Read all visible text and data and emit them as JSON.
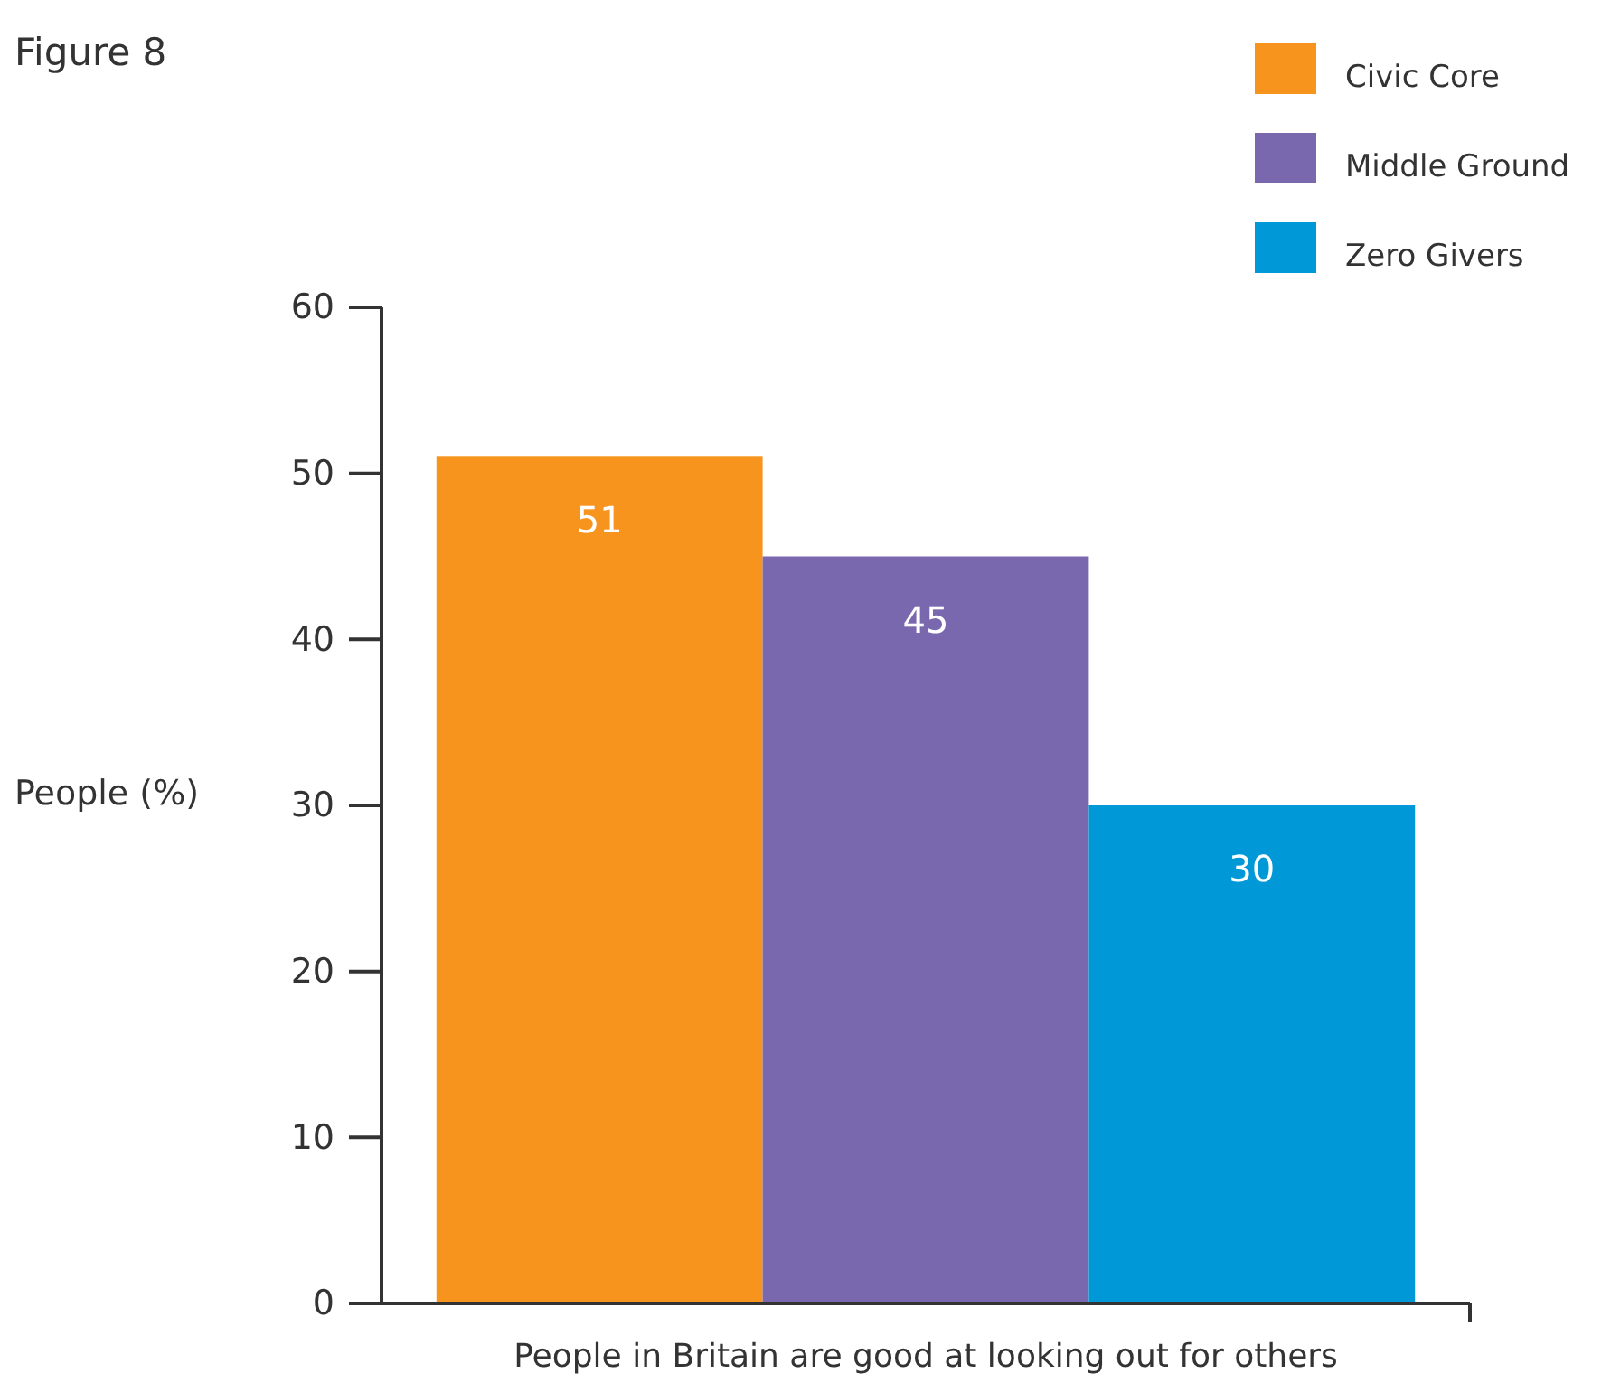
{
  "chart_data": {
    "type": "bar",
    "title": "Figure 8",
    "ylabel": "People (%)",
    "categories": [
      "People in Britain are good at looking out for others"
    ],
    "series": [
      {
        "name": "Civic Core",
        "color": "#f7941d",
        "values": [
          51
        ]
      },
      {
        "name": "Middle Ground",
        "color": "#7a68ae",
        "values": [
          45
        ]
      },
      {
        "name": "Zero Givers",
        "color": "#0098d6",
        "values": [
          30
        ]
      }
    ],
    "ylim": [
      0,
      60
    ],
    "yticks": [
      0,
      10,
      20,
      30,
      40,
      50,
      60
    ],
    "data_labels": true,
    "legend": "top right",
    "grid": false
  }
}
